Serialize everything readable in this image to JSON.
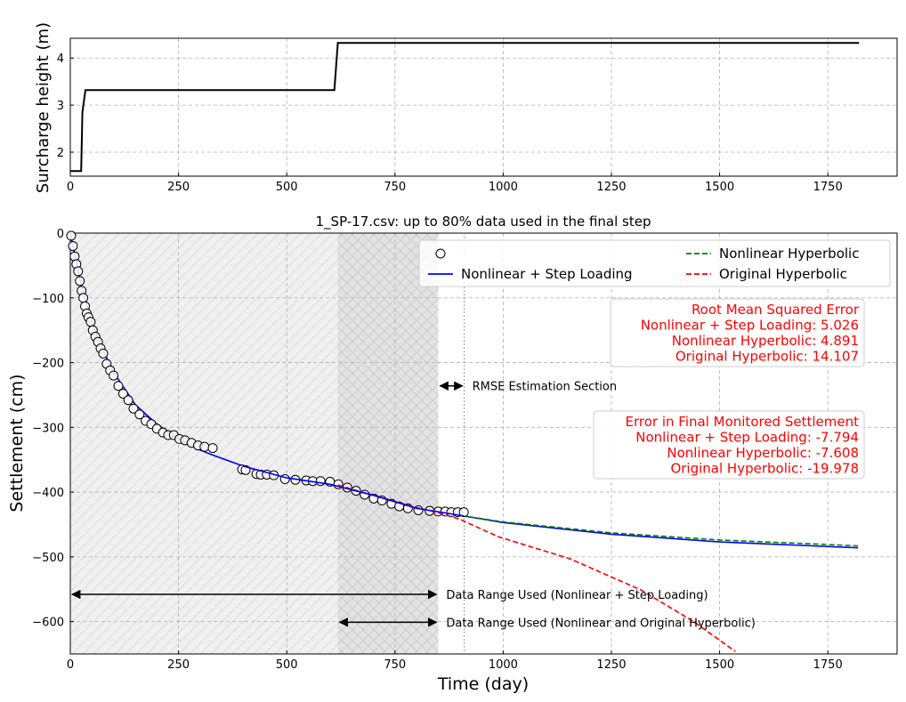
{
  "chart_data": [
    {
      "type": "line",
      "ylabel": "Surcharge height (m)",
      "xlim": [
        0,
        1910
      ],
      "ylim": [
        1.49,
        4.42
      ],
      "xticks": [
        0,
        250,
        500,
        750,
        1000,
        1250,
        1500,
        1750
      ],
      "yticks": [
        2,
        3,
        4
      ],
      "grid": true,
      "series": [
        {
          "color": "#000000",
          "x": [
            0,
            25,
            28,
            35,
            610,
            618,
            1822
          ],
          "y": [
            1.6,
            1.6,
            2.85,
            3.32,
            3.32,
            4.32,
            4.32
          ]
        }
      ]
    },
    {
      "type": "scatter+line",
      "title": "1_SP-17.csv: up to 80% data used in the final step",
      "xlabel": "Time (day)",
      "ylabel": "Settlement (cm)",
      "xlim": [
        0,
        1910
      ],
      "ylim": [
        -650,
        0
      ],
      "xticks": [
        0,
        250,
        500,
        750,
        1000,
        1250,
        1500,
        1750
      ],
      "yticks": [
        0,
        -100,
        -200,
        -300,
        -400,
        -500,
        -600
      ],
      "grid": true,
      "legend": {
        "placement": "top-right"
      },
      "measured": {
        "name": "measured data",
        "x": [
          2,
          6,
          10,
          14,
          18,
          22,
          26,
          30,
          34,
          38,
          42,
          47,
          52,
          58,
          64,
          70,
          76,
          84,
          92,
          100,
          111,
          122,
          134,
          146,
          160,
          174,
          187,
          200,
          214,
          226,
          239,
          252,
          265,
          280,
          295,
          310,
          329,
          397,
          405,
          430,
          440,
          454,
          470,
          496,
          520,
          545,
          560,
          578,
          600,
          619,
          640,
          660,
          680,
          701,
          720,
          742,
          760,
          780,
          804,
          830,
          850,
          866,
          880,
          895,
          909
        ],
        "y": [
          -4,
          -20,
          -36,
          -48,
          -59,
          -74,
          -89,
          -100,
          -113,
          -124,
          -130,
          -137,
          -150,
          -160,
          -168,
          -178,
          -186,
          -202,
          -212,
          -220,
          -236,
          -248,
          -258,
          -271,
          -280,
          -290,
          -295,
          -302,
          -308,
          -312,
          -312,
          -318,
          -320,
          -324,
          -328,
          -330,
          -332,
          -365,
          -366,
          -372,
          -373,
          -373,
          -374,
          -380,
          -381,
          -382,
          -383,
          -383,
          -384,
          -388,
          -393,
          -398,
          -404,
          -410,
          -413,
          -418,
          -422,
          -425,
          -428,
          -429,
          -430,
          -430,
          -431,
          -431,
          -431
        ]
      },
      "series": [
        {
          "name": "Nonlinear + Step Loading",
          "color": "#0000ff",
          "dash": false,
          "x": [
            0,
            25,
            50,
            75,
            100,
            150,
            200,
            250,
            300,
            330,
            400,
            500,
            600,
            700,
            800,
            910,
            1000,
            1250,
            1500,
            1820
          ],
          "y": [
            0,
            -80,
            -140,
            -180,
            -215,
            -265,
            -295,
            -318,
            -335,
            -343,
            -360,
            -378,
            -388,
            -405,
            -425,
            -437,
            -447,
            -465,
            -477,
            -486
          ]
        },
        {
          "name": "Nonlinear Hyperbolic",
          "color": "#008000",
          "dash": true,
          "x": [
            618,
            700,
            800,
            910,
            1000,
            1250,
            1500,
            1820
          ],
          "y": [
            -389,
            -405,
            -425,
            -437,
            -446,
            -463,
            -474,
            -483
          ]
        },
        {
          "name": "Original Hyperbolic",
          "color": "#ff0000",
          "dash": true,
          "x": [
            618,
            700,
            800,
            850,
            900,
            989,
            1154,
            1318,
            1440,
            1536
          ],
          "y": [
            -389,
            -405,
            -424,
            -432,
            -442,
            -469,
            -503,
            -551,
            -600,
            -646
          ]
        }
      ],
      "shaded": [
        {
          "from": 0,
          "to": 850,
          "color": "#f0f0f0"
        },
        {
          "from": 618,
          "to": 850,
          "color": "#e3e3e3"
        }
      ],
      "vline": 910,
      "annotations": [
        {
          "text": "RMSE Estimation Section",
          "from": 850,
          "to": 910,
          "y": -236
        },
        {
          "text": "Data Range Used (Nonlinear + Step Loading)",
          "from": 0,
          "to": 850,
          "y": -558
        },
        {
          "text": "Data Range Used (Nonlinear and Original Hyperbolic)",
          "from": 618,
          "to": 850,
          "y": -601
        }
      ],
      "rmse_box": [
        "Root Mean Squared Error",
        "Nonlinear + Step Loading: 5.026",
        "Nonlinear Hyperbolic: 4.891",
        "Original Hyperbolic: 14.107"
      ],
      "error_box": [
        "Error in Final Monitored Settlement",
        "Nonlinear + Step Loading: -7.794",
        "Nonlinear Hyperbolic: -7.608",
        "Original Hyperbolic: -19.978"
      ]
    }
  ]
}
